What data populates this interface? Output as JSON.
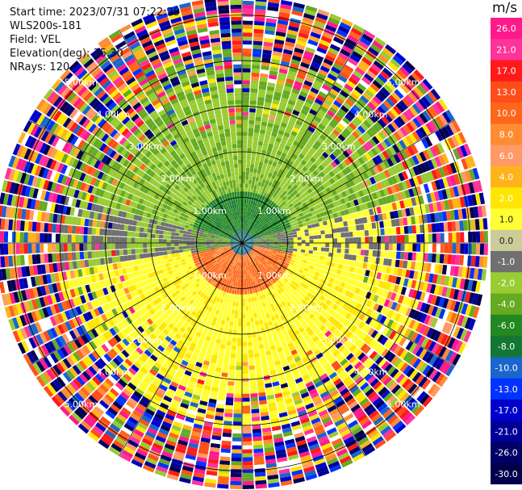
{
  "info": {
    "start_time": "Start time: 2023/07/31 07:22:29",
    "instrument": "WLS200s-181",
    "field": "Field: VEL",
    "elevation": "Elevation(deg): 35.30",
    "nrays": "NRays: 120"
  },
  "chart_data": {
    "type": "heatmap",
    "projection": "polar-ppi",
    "field": "VEL",
    "units": "m/s",
    "nrays": 120,
    "range_ring_labels": [
      "1.00km",
      "2.00km",
      "3.00km",
      "4.00km",
      "5.00km"
    ],
    "range_rings_km": [
      1,
      2,
      3,
      4,
      5
    ],
    "max_range_km": 5.4,
    "colorbar": {
      "label": "m/s",
      "ticks": [
        "26.0",
        "21.0",
        "17.0",
        "13.0",
        "10.0",
        "8.0",
        "6.0",
        "4.0",
        "2.0",
        "1.0",
        "0.0",
        "-1.0",
        "-2.0",
        "-4.0",
        "-6.0",
        "-8.0",
        "-10.0",
        "-13.0",
        "-17.0",
        "-21.0",
        "-26.0",
        "-30.0"
      ],
      "colors": [
        "#ff1a8c",
        "#ff3399",
        "#ff1a1a",
        "#ff4d1a",
        "#ff661a",
        "#ff8c33",
        "#ff9966",
        "#ffb31a",
        "#ffe600",
        "#ffff33",
        "#cccc99",
        "#707070",
        "#99cc33",
        "#66aa22",
        "#228822",
        "#117733",
        "#1a66cc",
        "#0033ff",
        "#0000cc",
        "#000099",
        "#000066",
        "#00004d"
      ]
    }
  }
}
